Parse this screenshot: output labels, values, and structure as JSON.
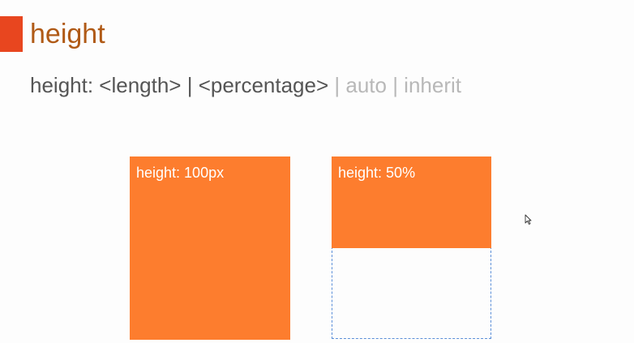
{
  "slide": {
    "title": "height",
    "syntax": {
      "primary": "height: <length> | <percentage>",
      "secondary": " | auto | inherit"
    }
  },
  "examples": {
    "fixed_label": "height: 100px",
    "percent_label": "height: 50%"
  },
  "colors": {
    "accent": "#e8461f",
    "title": "#b05a16",
    "box_fill": "#fd7d2e",
    "dashed_border": "#5b8fd8",
    "syntax_text": "#555555",
    "syntax_dim": "#b8b8b8"
  },
  "icons": {
    "cursor": "mouse-pointer-icon"
  }
}
